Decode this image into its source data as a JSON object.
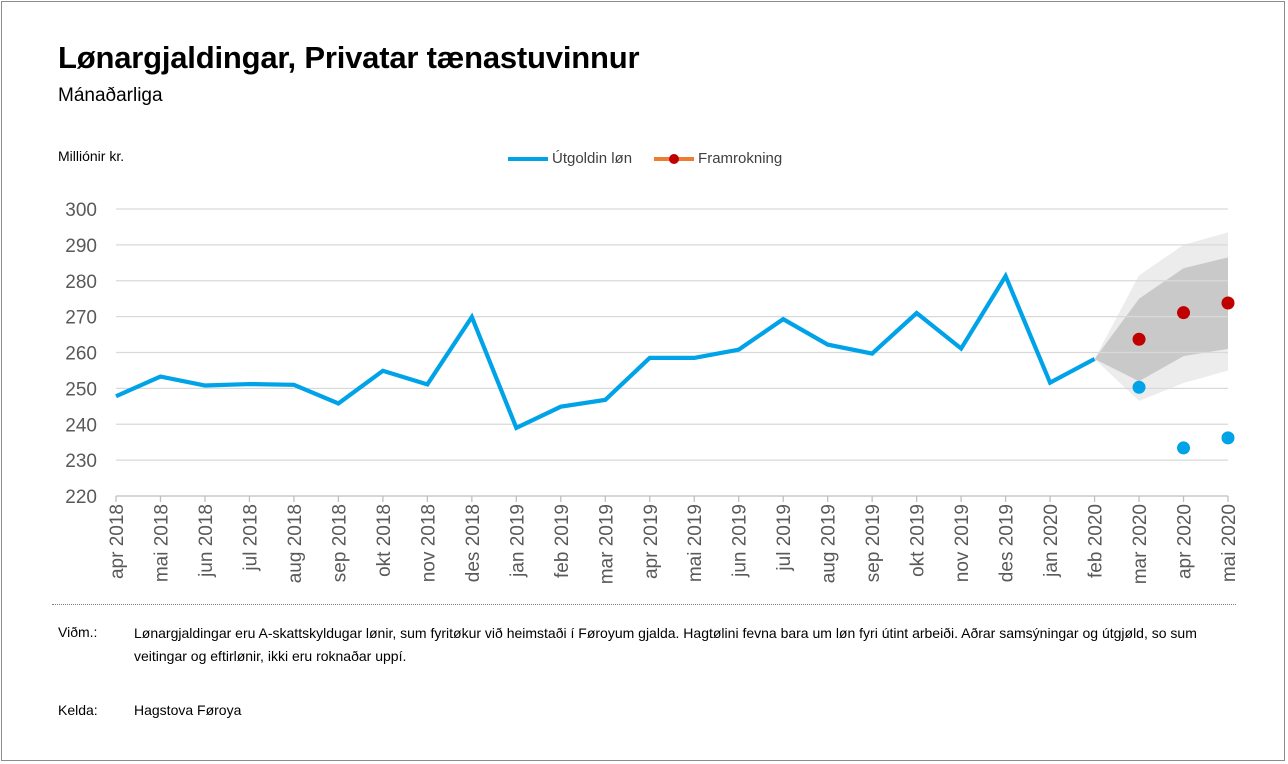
{
  "header": {
    "title": "Lønargjaldingar, Privatar tænastuvinnur",
    "subtitle": "Mánaðarliga"
  },
  "chart_data": {
    "type": "line",
    "ylabel": "Milliónir kr.",
    "ylim": [
      220,
      300
    ],
    "yticks": [
      220,
      230,
      240,
      250,
      260,
      270,
      280,
      290,
      300
    ],
    "grid": true,
    "legend_position": "top-center",
    "categories": [
      "apr 2018",
      "mai 2018",
      "jun 2018",
      "jul 2018",
      "aug 2018",
      "sep 2018",
      "okt 2018",
      "nov 2018",
      "des 2018",
      "jan 2019",
      "feb 2019",
      "mar 2019",
      "apr 2019",
      "mai 2019",
      "jun 2019",
      "jul 2019",
      "aug 2019",
      "sep 2019",
      "okt 2019",
      "nov 2019",
      "des 2019",
      "jan 2020",
      "feb 2020",
      "mar 2020",
      "apr 2020",
      "mai 2020"
    ],
    "series": [
      {
        "name": "Útgoldin løn",
        "color": "#00a2e8",
        "style": "line",
        "values": [
          247.8,
          253.3,
          250.8,
          251.2,
          251.0,
          245.8,
          254.9,
          251.1,
          269.9,
          239.0,
          244.9,
          246.8,
          258.5,
          258.5,
          260.8,
          269.3,
          262.2,
          259.7,
          271.0,
          261.1,
          281.3,
          251.6,
          258.2,
          null,
          null,
          null
        ]
      },
      {
        "name": "Útgoldin løn (markers)",
        "color": "#00a2e8",
        "style": "markers",
        "values": [
          null,
          null,
          null,
          null,
          null,
          null,
          null,
          null,
          null,
          null,
          null,
          null,
          null,
          null,
          null,
          null,
          null,
          null,
          null,
          null,
          null,
          null,
          null,
          250.3,
          233.4,
          236.2
        ]
      },
      {
        "name": "Framrokning",
        "color": "#c00000",
        "style": "markers",
        "values": [
          null,
          null,
          null,
          null,
          null,
          null,
          null,
          null,
          null,
          null,
          null,
          null,
          null,
          null,
          null,
          null,
          null,
          null,
          null,
          null,
          null,
          null,
          null,
          263.7,
          271.1,
          273.8
        ]
      }
    ],
    "confidence_bands": [
      {
        "name": "outer",
        "color": "#ececec",
        "start": 258.2,
        "upper": [
          281.5,
          290.0,
          293.5
        ],
        "lower": [
          246.5,
          251.5,
          255.0
        ]
      },
      {
        "name": "inner",
        "color": "#c9c9c9",
        "start": 258.2,
        "upper": [
          275.0,
          283.5,
          286.5
        ],
        "lower": [
          252.0,
          259.0,
          261.0
        ]
      }
    ]
  },
  "legend": {
    "items": [
      {
        "label": "Útgoldin løn",
        "color": "#00a2e8"
      },
      {
        "label": "Framrokning",
        "color": "#ed7d31",
        "marker_color": "#c00000"
      }
    ]
  },
  "notes": {
    "note_label": "Viðm.:",
    "note_text": "Lønargjaldingar eru A-skattskyldugar lønir, sum fyritøkur við heimstaði í Føroyum gjalda. Hagtølini fevna bara um løn fyri útint arbeiði. Aðrar samsýningar og útgjøld, so sum veitingar og eftirlønir, ikki eru roknaðar uppí.",
    "source_label": "Kelda:",
    "source_text": "Hagstova Føroya"
  }
}
